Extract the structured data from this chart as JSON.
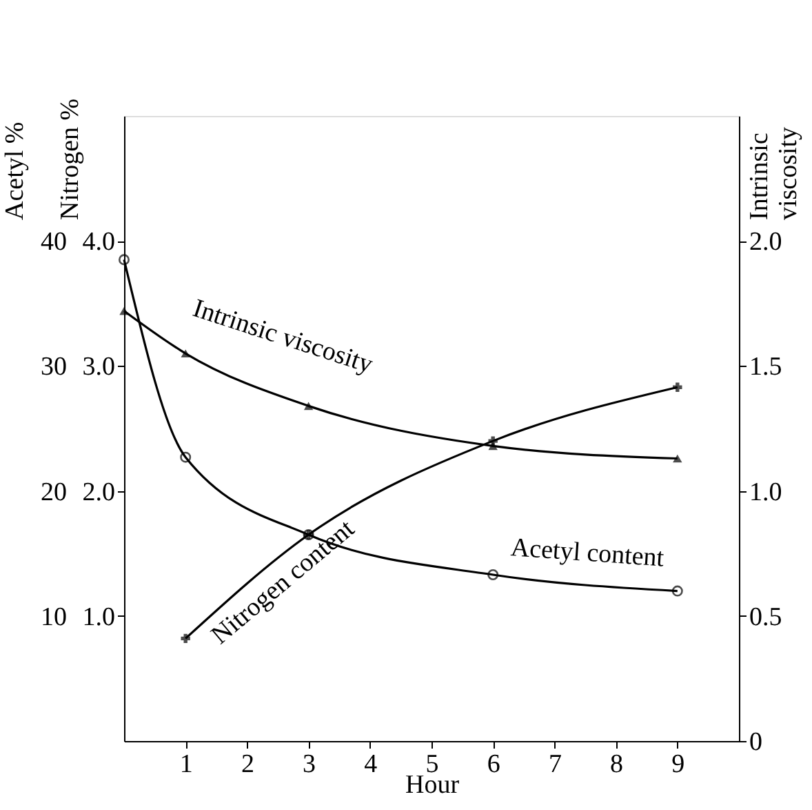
{
  "chart_data": {
    "type": "line",
    "xlabel": "Hour",
    "ylabel": "Acetyl %",
    "y3label": "Nitrogen %",
    "y2label": "Intrinsic viscosity",
    "xlim": [
      0,
      10
    ],
    "xticks": [
      1,
      2,
      3,
      4,
      5,
      6,
      7,
      8,
      9
    ],
    "ylim": [
      0,
      50
    ],
    "yticks": [
      10,
      20,
      30,
      40
    ],
    "y3lim": [
      0,
      5
    ],
    "y3ticks": [
      {
        "value": 1,
        "label": "1.0"
      },
      {
        "value": 2,
        "label": "2.0"
      },
      {
        "value": 3,
        "label": "3.0"
      },
      {
        "value": 4,
        "label": "4.0"
      }
    ],
    "y2lim": [
      0,
      2.5
    ],
    "y2ticks": [
      0,
      0.5,
      {
        "value": 1,
        "label": "1.0"
      },
      1.5,
      {
        "value": 2,
        "label": "2.0"
      }
    ],
    "grid": false,
    "line_style": "solid",
    "series": [
      {
        "name": "Acetyl content",
        "color": "#000000",
        "marker": "circle",
        "axis": "y",
        "x": [
          0,
          1,
          3,
          6,
          9
        ],
        "values": [
          38.5,
          22.7,
          16.5,
          13.3,
          12.0
        ]
      },
      {
        "name": "Intrinsic viscosity",
        "color": "#000000",
        "marker": "triangle",
        "axis": "y2",
        "x": [
          0,
          1,
          3,
          6,
          9
        ],
        "values": [
          1.72,
          1.55,
          1.34,
          1.18,
          1.13
        ]
      },
      {
        "name": "Nitrogen content",
        "color": "#000000",
        "marker": "cross",
        "axis": "y3",
        "x": [
          1,
          3,
          6,
          9
        ],
        "values": [
          0.82,
          1.65,
          2.4,
          2.83
        ]
      }
    ]
  }
}
